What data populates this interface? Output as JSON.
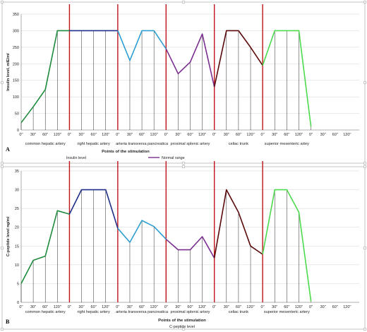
{
  "chart_data": [
    {
      "type": "line",
      "panel_label": "A",
      "ylabel": "Insulin level, mIE/ml",
      "xlabel": "Points of the stimulation",
      "ylim": [
        0,
        350
      ],
      "yticks": [
        0,
        50,
        100,
        150,
        200,
        250,
        300,
        350
      ],
      "x_ticks": [
        "0''",
        "30''",
        "60''",
        "120''",
        "0''",
        "30''",
        "60''",
        "120''",
        "0''",
        "30''",
        "60''",
        "120''",
        "0''",
        "30''",
        "60''",
        "120''",
        "0''",
        "30''",
        "60''",
        "120''",
        "0''",
        "30''",
        "60''",
        "120''",
        "0''",
        "30''",
        "60''",
        "120''"
      ],
      "segment_labels": [
        "common hepatic artery",
        "right hepatic artery",
        "arteria transversa pancreatica",
        "proximal splenic artery",
        "celiac trunk",
        "superior mesenteric artey"
      ],
      "series": [
        {
          "color": "#1e8a3c",
          "x": [
            0,
            1,
            2,
            3,
            4
          ],
          "values": [
            22,
            70,
            122,
            300,
            300
          ]
        },
        {
          "color": "#1f2f8a",
          "x": [
            4,
            5,
            6,
            7,
            8
          ],
          "values": [
            300,
            300,
            300,
            300,
            300
          ]
        },
        {
          "color": "#2e9fd0",
          "x": [
            8,
            9,
            10,
            11,
            12
          ],
          "values": [
            300,
            210,
            300,
            300,
            245
          ]
        },
        {
          "color": "#7a2e8f",
          "x": [
            12,
            13,
            14,
            15,
            16
          ],
          "values": [
            245,
            170,
            205,
            290,
            130
          ]
        },
        {
          "color": "#5a0a0a",
          "x": [
            16,
            17,
            18,
            19,
            20
          ],
          "values": [
            130,
            300,
            300,
            250,
            195
          ]
        },
        {
          "color": "#4cd94c",
          "x": [
            20,
            21,
            22,
            23,
            24
          ],
          "values": [
            195,
            300,
            300,
            300,
            10
          ]
        }
      ],
      "stim_lines_x": [
        4,
        8,
        12,
        16,
        20
      ],
      "legend": [
        {
          "label": "Insulin level",
          "color": "#ffffff"
        },
        {
          "label": "Normal range",
          "color": "#7a2e8f"
        }
      ]
    },
    {
      "type": "line",
      "panel_label": "B",
      "ylabel": "C-peptide level ng/ml",
      "xlabel": "Points of the stimulation",
      "xlabel_sub": "C-peptide level",
      "ylim": [
        0,
        35
      ],
      "yticks": [
        0,
        5,
        10,
        15,
        20,
        25,
        30,
        35
      ],
      "x_ticks": [
        "0''",
        "30''",
        "60''",
        "120''",
        "0''",
        "30''",
        "60''",
        "120''",
        "0''",
        "30''",
        "60''",
        "120''",
        "0''",
        "30''",
        "60''",
        "120''",
        "0''",
        "30''",
        "60''",
        "120''",
        "0''",
        "30''",
        "60''",
        "120''",
        "0''",
        "30''",
        "60''",
        "120''"
      ],
      "segment_labels": [
        "common hepatic artery",
        "right hepatic artery",
        "arteria transversa pancreatica",
        "proximal splenic artery",
        "celiac trunk",
        "superior mesenteric artery"
      ],
      "series": [
        {
          "color": "#1e8a3c",
          "x": [
            0,
            1,
            2,
            3,
            4
          ],
          "values": [
            5,
            11.2,
            12.3,
            24.4,
            23.5
          ]
        },
        {
          "color": "#1f2f8a",
          "x": [
            4,
            5,
            6,
            7,
            8
          ],
          "values": [
            23.5,
            30,
            30,
            30,
            19.7
          ]
        },
        {
          "color": "#2e9fd0",
          "x": [
            8,
            9,
            10,
            11,
            12
          ],
          "values": [
            19.7,
            16,
            21.8,
            20.2,
            16.8
          ]
        },
        {
          "color": "#7a2e8f",
          "x": [
            12,
            13,
            14,
            15,
            16
          ],
          "values": [
            16.8,
            14,
            14,
            17.5,
            11.8
          ]
        },
        {
          "color": "#5a0a0a",
          "x": [
            16,
            17,
            18,
            19,
            20
          ],
          "values": [
            11.8,
            30,
            24,
            15,
            12.8
          ]
        },
        {
          "color": "#4cd94c",
          "x": [
            20,
            21,
            22,
            23,
            24
          ],
          "values": [
            12.8,
            30,
            30,
            24,
            0.3
          ]
        }
      ],
      "stim_lines_x": [
        4,
        8,
        12,
        16,
        20
      ]
    }
  ],
  "colors": {
    "stimulation_line": "#c0141c",
    "drop_line": "#111111",
    "frame": "#a0a0a0"
  }
}
